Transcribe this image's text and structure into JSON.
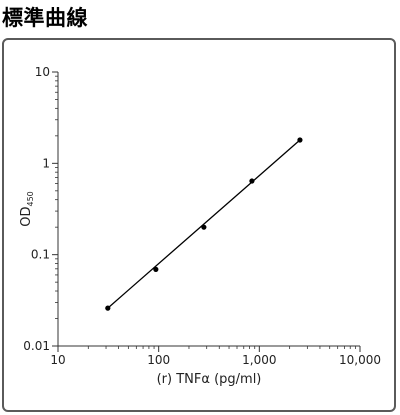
{
  "header": {
    "title": "標準曲線"
  },
  "chart_data": {
    "type": "line",
    "xscale": "log",
    "yscale": "log",
    "xlim": [
      10,
      10000
    ],
    "ylim": [
      0.01,
      10
    ],
    "xticks": [
      10,
      100,
      1000,
      10000
    ],
    "xtick_labels": [
      "10",
      "100",
      "1,000",
      "10,000"
    ],
    "yticks": [
      0.01,
      0.1,
      1,
      10
    ],
    "ytick_labels": [
      "0.01",
      "0.1",
      "1",
      "10"
    ],
    "xlabel": "(r) TNFα  (pg/ml)",
    "ylabel": "OD",
    "ylabel_sub": "450",
    "grid": false,
    "series": [
      {
        "x": [
          31.25,
          93.75,
          281.25,
          843.75,
          2531.25
        ],
        "y": [
          0.026,
          0.069,
          0.2,
          0.64,
          1.8
        ]
      }
    ],
    "fit_line": {
      "x": [
        31.25,
        2531.25
      ],
      "y": [
        0.026,
        1.8
      ]
    },
    "colors": {
      "line": "#000000",
      "points": "#000000",
      "axis": "#333333",
      "panel_border": "#5a5a5a"
    }
  }
}
